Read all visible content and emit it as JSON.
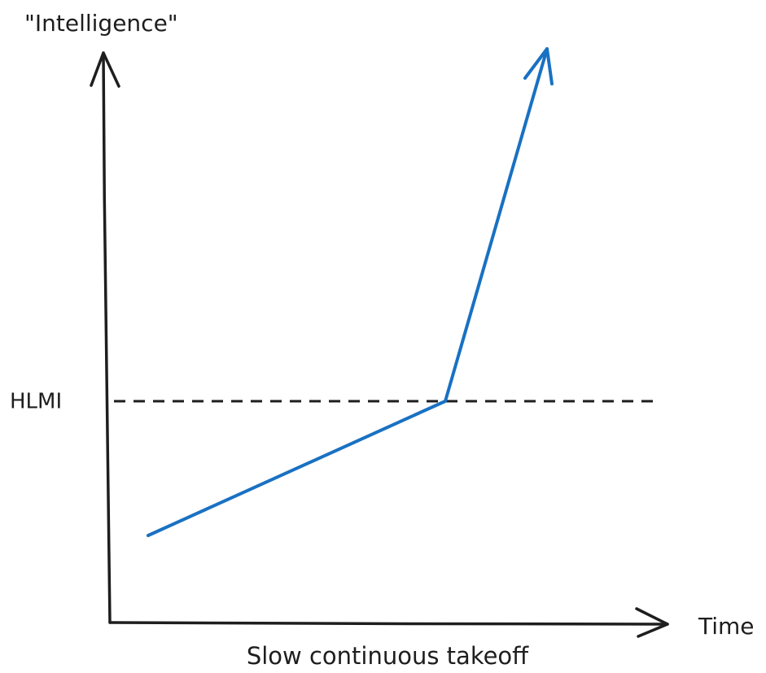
{
  "axes": {
    "y_label": "\"Intelligence\"",
    "x_label": "Time"
  },
  "threshold": {
    "label": "HLMI"
  },
  "caption": "Slow continuous takeoff"
}
